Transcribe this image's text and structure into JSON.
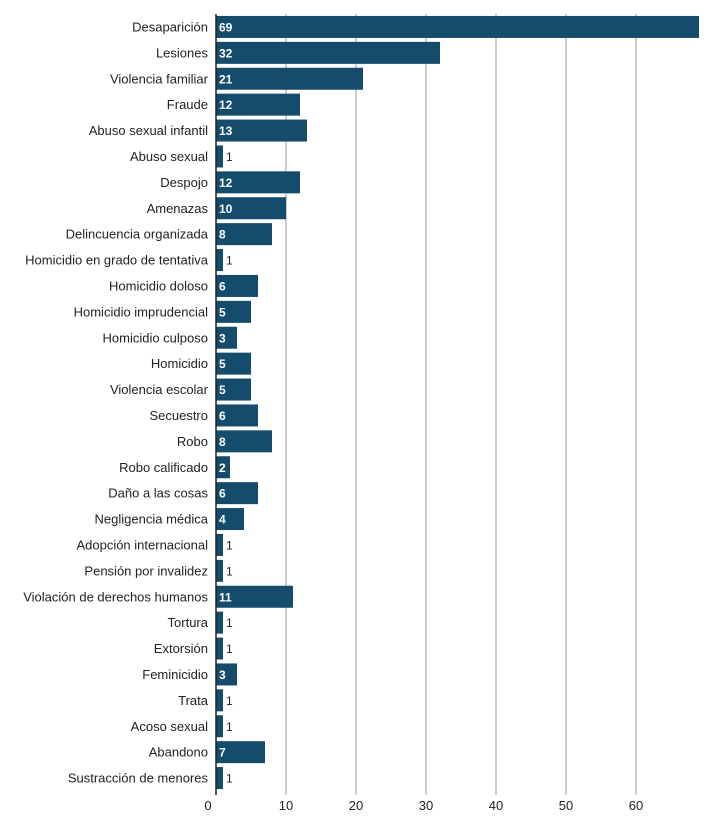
{
  "chart_data": {
    "type": "bar",
    "orientation": "horizontal",
    "categories": [
      "Desaparición",
      "Lesiones",
      "Violencia familiar",
      "Fraude",
      "Abuso sexual infantil",
      "Abuso sexual",
      "Despojo",
      "Amenazas",
      "Delincuencia organizada",
      "Homicidio en grado de tentativa",
      "Homicidio doloso",
      "Homicidio imprudencial",
      "Homicidio culposo",
      "Homicidio",
      "Violencia escolar",
      "Secuestro",
      "Robo",
      "Robo calificado",
      "Daño a las cosas",
      "Negligencia médica",
      "Adopción internacional",
      "Pensión por invalidez",
      "Violación de derechos humanos",
      "Tortura",
      "Extorsión",
      "Feminicidio",
      "Trata",
      "Acoso sexual",
      "Abandono",
      "Sustracción de menores"
    ],
    "values": [
      69,
      32,
      21,
      12,
      13,
      1,
      12,
      10,
      8,
      1,
      6,
      5,
      3,
      5,
      5,
      6,
      8,
      2,
      6,
      4,
      1,
      1,
      11,
      1,
      1,
      3,
      1,
      1,
      7,
      1
    ],
    "xlim": [
      0,
      69
    ],
    "xticks": [
      0,
      10,
      20,
      30,
      40,
      50,
      60
    ],
    "grid": true,
    "bar_color": "#154b6b",
    "title": "",
    "xlabel": "",
    "ylabel": ""
  }
}
